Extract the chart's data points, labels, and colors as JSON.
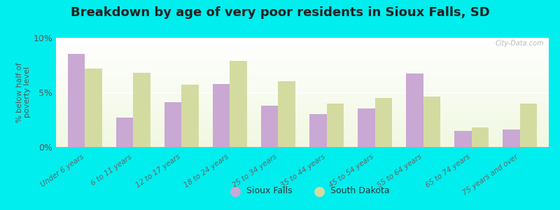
{
  "title": "Breakdown by age of very poor residents in Sioux Falls, SD",
  "ylabel": "% below half of\npoverty level",
  "categories": [
    "Under 6 years",
    "6 to 11 years",
    "12 to 17 years",
    "18 to 24 years",
    "25 to 34 years",
    "35 to 44 years",
    "45 to 54 years",
    "55 to 64 years",
    "65 to 74 years",
    "75 years and over"
  ],
  "sioux_falls": [
    8.5,
    2.7,
    4.1,
    5.8,
    3.8,
    3.0,
    3.5,
    6.7,
    1.5,
    1.6
  ],
  "south_dakota": [
    7.2,
    6.8,
    5.7,
    7.9,
    6.0,
    4.0,
    4.5,
    4.6,
    1.8,
    4.0
  ],
  "sioux_falls_color": "#c9a8d4",
  "south_dakota_color": "#d4dba0",
  "background_color": "#00eeee",
  "ylim": [
    0,
    10
  ],
  "yticks": [
    0,
    5,
    10
  ],
  "ytick_labels": [
    "0%",
    "5%",
    "10%"
  ],
  "bar_width": 0.35,
  "title_fontsize": 13,
  "legend_labels": [
    "Sioux Falls",
    "South Dakota"
  ],
  "watermark": "City-Data.com"
}
